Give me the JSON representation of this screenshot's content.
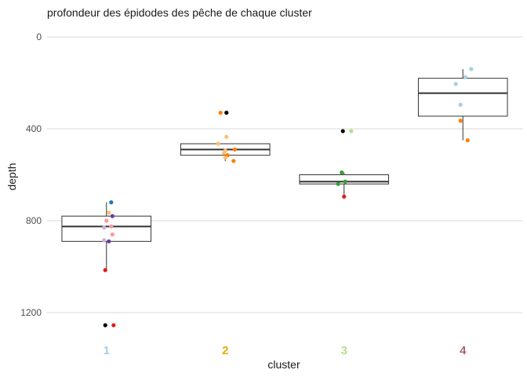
{
  "chart_data": {
    "type": "box",
    "title": "profondeur des épidodes des pêche de chaque cluster",
    "xlabel": "cluster",
    "ylabel": "depth",
    "y_reversed": true,
    "ylim": [
      0,
      1340
    ],
    "yticks": [
      0,
      400,
      800,
      1200
    ],
    "ytick_labels": [
      "0",
      "400",
      "800",
      "1200"
    ],
    "grid": "horizontal-major",
    "categories": [
      "1",
      "2",
      "3",
      "4"
    ],
    "category_colors": [
      "#a6cee3",
      "#e6ab02",
      "#b2df8a",
      "#a8646e"
    ],
    "boxes": [
      {
        "cluster": "1",
        "whisker_low": 720,
        "q1": 780,
        "median": 825,
        "q3": 890,
        "whisker_high": 1010
      },
      {
        "cluster": "2",
        "whisker_low": 465,
        "q1": 465,
        "median": 490,
        "q3": 515,
        "whisker_high": 540
      },
      {
        "cluster": "3",
        "whisker_low": 590,
        "q1": 600,
        "median": 630,
        "q3": 640,
        "whisker_high": 690
      },
      {
        "cluster": "4",
        "whisker_low": 140,
        "q1": 180,
        "median": 245,
        "q3": 345,
        "whisker_high": 450
      }
    ],
    "points": [
      {
        "cluster": "1",
        "jitter": 0.04,
        "y": 720,
        "color": "#1f78b4"
      },
      {
        "cluster": "1",
        "jitter": 0.02,
        "y": 765,
        "color": "#fdbf6f"
      },
      {
        "cluster": "1",
        "jitter": 0.05,
        "y": 780,
        "color": "#6a3d9a"
      },
      {
        "cluster": "1",
        "jitter": 0.0,
        "y": 800,
        "color": "#fb9a99"
      },
      {
        "cluster": "1",
        "jitter": 0.04,
        "y": 825,
        "color": "#fb9a99"
      },
      {
        "cluster": "1",
        "jitter": -0.02,
        "y": 830,
        "color": "#cab2d6"
      },
      {
        "cluster": "1",
        "jitter": 0.05,
        "y": 860,
        "color": "#fb9a99"
      },
      {
        "cluster": "1",
        "jitter": -0.02,
        "y": 885,
        "color": "#cab2d6"
      },
      {
        "cluster": "1",
        "jitter": 0.02,
        "y": 890,
        "color": "#6a3d9a"
      },
      {
        "cluster": "1",
        "jitter": -0.01,
        "y": 1015,
        "color": "#e31a1c"
      },
      {
        "cluster": "1",
        "jitter": -0.01,
        "y": 1255,
        "color": "#000000"
      },
      {
        "cluster": "1",
        "jitter": 0.06,
        "y": 1255,
        "color": "#e31a1c"
      },
      {
        "cluster": "2",
        "jitter": -0.04,
        "y": 330,
        "color": "#ff7f00"
      },
      {
        "cluster": "2",
        "jitter": 0.01,
        "y": 330,
        "color": "#000000"
      },
      {
        "cluster": "2",
        "jitter": 0.01,
        "y": 435,
        "color": "#fdbf6f"
      },
      {
        "cluster": "2",
        "jitter": -0.06,
        "y": 465,
        "color": "#fdbf6f"
      },
      {
        "cluster": "2",
        "jitter": 0.08,
        "y": 490,
        "color": "#ff7f00"
      },
      {
        "cluster": "2",
        "jitter": 0.0,
        "y": 495,
        "color": "#fdbf6f"
      },
      {
        "cluster": "2",
        "jitter": -0.01,
        "y": 505,
        "color": "#fdbf6f"
      },
      {
        "cluster": "2",
        "jitter": 0.02,
        "y": 515,
        "color": "#ff7f00"
      },
      {
        "cluster": "2",
        "jitter": 0.0,
        "y": 525,
        "color": "#fdbf6f"
      },
      {
        "cluster": "2",
        "jitter": 0.07,
        "y": 540,
        "color": "#ff7f00"
      },
      {
        "cluster": "3",
        "jitter": -0.01,
        "y": 410,
        "color": "#000000"
      },
      {
        "cluster": "3",
        "jitter": 0.06,
        "y": 410,
        "color": "#b2df8a"
      },
      {
        "cluster": "3",
        "jitter": -0.02,
        "y": 590,
        "color": "#33a02c"
      },
      {
        "cluster": "3",
        "jitter": 0.01,
        "y": 630,
        "color": "#33a02c"
      },
      {
        "cluster": "3",
        "jitter": -0.05,
        "y": 640,
        "color": "#33a02c"
      },
      {
        "cluster": "3",
        "jitter": 0.0,
        "y": 695,
        "color": "#e31a1c"
      },
      {
        "cluster": "4",
        "jitter": 0.07,
        "y": 140,
        "color": "#a6cee3"
      },
      {
        "cluster": "4",
        "jitter": 0.02,
        "y": 175,
        "color": "#a6cee3"
      },
      {
        "cluster": "4",
        "jitter": -0.06,
        "y": 205,
        "color": "#a6cee3"
      },
      {
        "cluster": "4",
        "jitter": -0.02,
        "y": 295,
        "color": "#a6cee3"
      },
      {
        "cluster": "4",
        "jitter": -0.02,
        "y": 365,
        "color": "#ff7f00"
      },
      {
        "cluster": "4",
        "jitter": 0.04,
        "y": 450,
        "color": "#ff7f00"
      }
    ]
  }
}
